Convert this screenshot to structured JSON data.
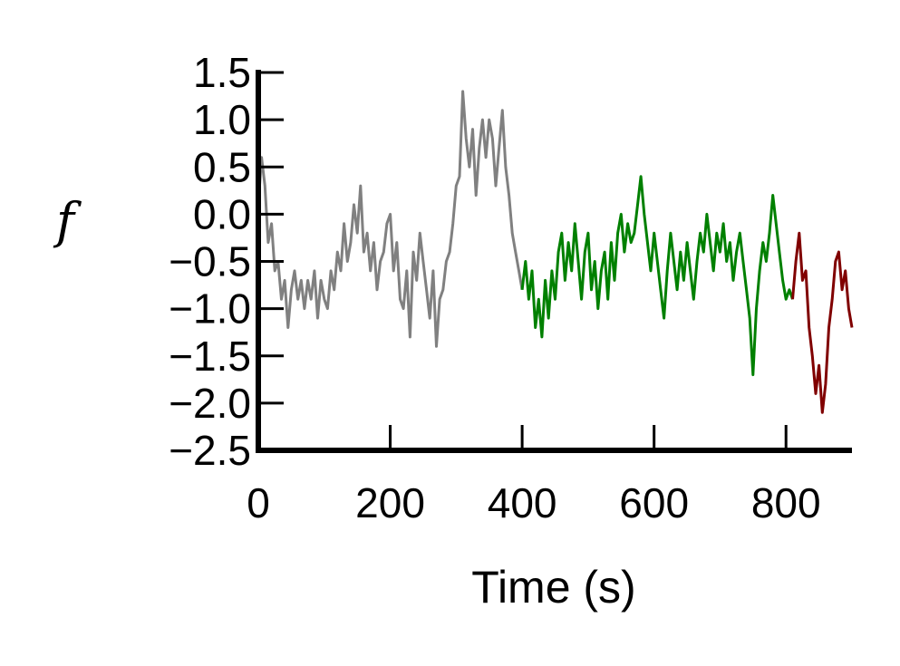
{
  "chart_data": {
    "type": "line",
    "title": "",
    "xlabel": "Time (s)",
    "ylabel": "f",
    "xlim": [
      0,
      900
    ],
    "ylim": [
      -2.5,
      1.5
    ],
    "x_ticks": [
      0,
      200,
      400,
      600,
      800
    ],
    "x_tick_labels": [
      "0",
      "200",
      "400",
      "600",
      "800"
    ],
    "y_ticks": [
      1.5,
      1.0,
      0.5,
      0.0,
      -0.5,
      -1.0,
      -1.5,
      -2.0,
      -2.5
    ],
    "y_tick_labels": [
      "1.5",
      "1.0",
      "0.5",
      "0.0",
      "−0.5",
      "−1.0",
      "−1.5",
      "−2.0",
      "−2.5"
    ],
    "grid": false,
    "legend": "none",
    "series": [
      {
        "color": "#808080",
        "x": [
          0,
          5,
          10,
          15,
          20,
          25,
          30,
          35,
          40,
          45,
          50,
          55,
          60,
          65,
          70,
          75,
          80,
          85,
          90,
          95,
          100,
          105,
          110,
          115,
          120,
          125,
          130,
          135,
          140,
          145,
          150,
          155,
          160,
          165,
          170,
          175,
          180,
          185,
          190,
          195,
          200,
          205,
          210,
          215,
          220,
          225,
          230,
          235,
          240,
          245,
          250,
          255,
          260,
          265,
          270,
          275,
          280,
          285,
          290,
          295,
          300,
          305,
          310,
          315,
          320,
          325,
          330,
          335,
          340,
          345,
          350,
          355,
          360,
          365,
          370,
          375,
          380,
          385,
          390,
          395,
          400
        ],
        "y": [
          0.1,
          0.6,
          0.3,
          -0.3,
          -0.1,
          -0.6,
          -0.5,
          -0.9,
          -0.7,
          -1.2,
          -0.8,
          -0.6,
          -0.9,
          -0.7,
          -1.0,
          -0.7,
          -0.9,
          -0.6,
          -1.1,
          -0.7,
          -0.9,
          -1.0,
          -0.6,
          -0.8,
          -0.4,
          -0.6,
          -0.1,
          -0.5,
          -0.3,
          0.1,
          -0.2,
          0.3,
          -0.4,
          -0.2,
          -0.6,
          -0.3,
          -0.8,
          -0.5,
          -0.4,
          -0.1,
          0.0,
          -0.6,
          -0.3,
          -0.9,
          -1.0,
          -0.6,
          -1.3,
          -0.4,
          -0.7,
          -0.2,
          -0.5,
          -0.8,
          -1.1,
          -0.6,
          -1.4,
          -0.9,
          -0.8,
          -0.5,
          -0.4,
          -0.1,
          0.3,
          0.4,
          1.3,
          0.8,
          0.5,
          0.9,
          0.2,
          0.7,
          1.0,
          0.6,
          1.0,
          0.8,
          0.3,
          0.7,
          1.1,
          0.5,
          0.2,
          -0.2,
          -0.4,
          -0.6,
          -0.8
        ]
      },
      {
        "color": "#008000",
        "x": [
          400,
          405,
          410,
          415,
          420,
          425,
          430,
          435,
          440,
          445,
          450,
          455,
          460,
          465,
          470,
          475,
          480,
          485,
          490,
          495,
          500,
          505,
          510,
          515,
          520,
          525,
          530,
          535,
          540,
          545,
          550,
          555,
          560,
          565,
          570,
          575,
          580,
          585,
          590,
          595,
          600,
          605,
          610,
          615,
          620,
          625,
          630,
          635,
          640,
          645,
          650,
          655,
          660,
          665,
          670,
          675,
          680,
          685,
          690,
          695,
          700,
          705,
          710,
          715,
          720,
          725,
          730,
          735,
          740,
          745,
          750,
          755,
          760,
          765,
          770,
          775,
          780,
          785,
          790,
          795,
          800,
          805,
          810
        ],
        "y": [
          -0.8,
          -0.5,
          -0.9,
          -0.6,
          -1.2,
          -0.9,
          -1.3,
          -0.7,
          -1.1,
          -0.6,
          -0.9,
          -0.4,
          -0.2,
          -0.7,
          -0.3,
          -0.6,
          -0.1,
          -0.5,
          -0.9,
          -0.4,
          -0.2,
          -0.8,
          -0.5,
          -1.0,
          -0.6,
          -0.4,
          -0.9,
          -0.3,
          -0.7,
          -0.2,
          0.0,
          -0.4,
          -0.1,
          -0.3,
          -0.2,
          0.1,
          0.4,
          0.0,
          -0.3,
          -0.6,
          -0.2,
          -0.5,
          -0.8,
          -1.1,
          -0.6,
          -0.2,
          -0.5,
          -0.8,
          -0.4,
          -0.7,
          -0.3,
          -0.6,
          -0.9,
          -0.5,
          -0.2,
          -0.4,
          0.0,
          -0.3,
          -0.6,
          -0.2,
          -0.4,
          -0.1,
          -0.5,
          -0.3,
          -0.7,
          -0.4,
          -0.2,
          -0.5,
          -0.8,
          -1.1,
          -1.7,
          -1.0,
          -0.6,
          -0.3,
          -0.5,
          -0.2,
          0.2,
          -0.1,
          -0.4,
          -0.7,
          -0.9,
          -0.8,
          -0.9
        ]
      },
      {
        "color": "#800000",
        "x": [
          810,
          815,
          820,
          825,
          830,
          835,
          840,
          845,
          850,
          855,
          860,
          865,
          870,
          875,
          880,
          885,
          890,
          895,
          900
        ],
        "y": [
          -0.9,
          -0.5,
          -0.2,
          -0.7,
          -0.6,
          -1.2,
          -1.5,
          -1.9,
          -1.6,
          -2.1,
          -1.8,
          -1.2,
          -0.9,
          -0.5,
          -0.4,
          -0.8,
          -0.6,
          -1.0,
          -1.2
        ]
      }
    ]
  }
}
